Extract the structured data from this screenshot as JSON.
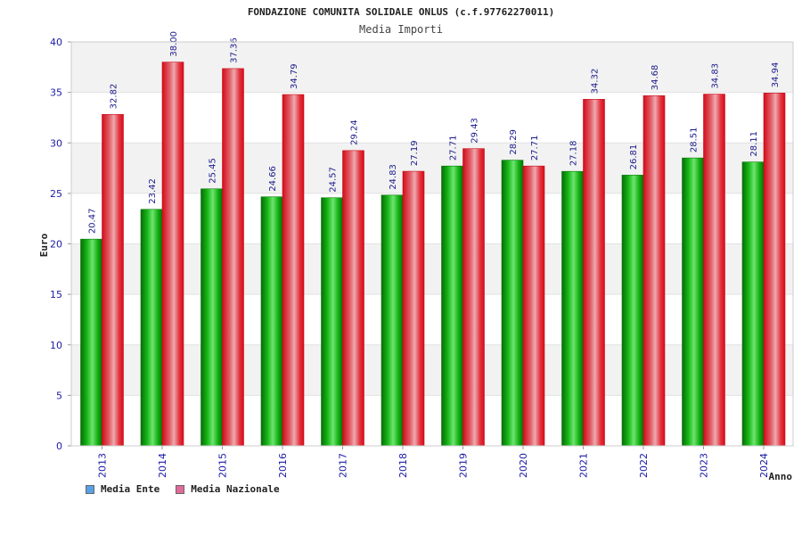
{
  "chart_data": {
    "type": "bar",
    "title": "FONDAZIONE COMUNITA SOLIDALE ONLUS (c.f.97762270011)",
    "subtitle": "Media Importi",
    "xlabel": "Anno",
    "ylabel": "Euro",
    "ylim": [
      0,
      40
    ],
    "yticks": [
      "0",
      "5",
      "10",
      "15",
      "20",
      "25",
      "30",
      "35",
      "40"
    ],
    "categories": [
      "2013",
      "2014",
      "2015",
      "2016",
      "2017",
      "2018",
      "2019",
      "2020",
      "2021",
      "2022",
      "2023",
      "2024"
    ],
    "series": [
      {
        "name": "Media Ente",
        "color": "#00b000",
        "values": [
          20.47,
          23.42,
          25.45,
          24.66,
          24.57,
          24.83,
          27.71,
          28.29,
          27.18,
          26.81,
          28.51,
          28.11
        ],
        "labels": [
          "20.47",
          "23.42",
          "25.45",
          "24.66",
          "24.57",
          "24.83",
          "27.71",
          "28.29",
          "27.18",
          "26.81",
          "28.51",
          "28.11"
        ]
      },
      {
        "name": "Media Nazionale",
        "color": "#e8101c",
        "values": [
          32.82,
          38.0,
          37.36,
          34.79,
          29.24,
          27.19,
          29.43,
          27.71,
          34.32,
          34.68,
          34.83,
          34.94
        ],
        "labels": [
          "32.82",
          "38.00",
          "37.36",
          "34.79",
          "29.24",
          "27.19",
          "29.43",
          "27.71",
          "34.32",
          "34.68",
          "34.83",
          "34.94"
        ]
      }
    ],
    "legend_colors": [
      "#5aa0e6",
      "#e06a9a"
    ],
    "grid": true,
    "legend": "bottom-left"
  }
}
